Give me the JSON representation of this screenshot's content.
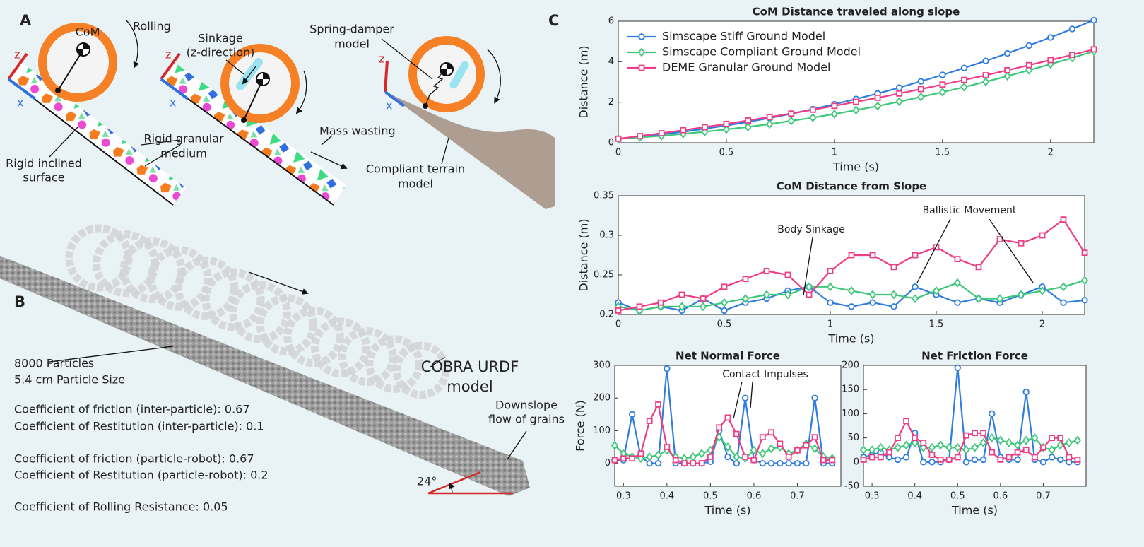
{
  "panel_labels": [
    "A",
    "B",
    "C"
  ],
  "diagram": {
    "com": "CoM",
    "rolling": "Rolling",
    "sinkage": [
      "Sinkage",
      "(z-direction)"
    ],
    "spring_damper": [
      "Spring-damper",
      "model"
    ],
    "granular": [
      "Rigid granular",
      "medium"
    ],
    "surface": [
      "Rigid inclined",
      "surface"
    ],
    "mass_wasting": "Mass wasting",
    "compliant": [
      "Compliant terrain",
      "model"
    ],
    "axis_z": "z",
    "axis_x": "x"
  },
  "simulation": {
    "model": [
      "COBRA URDF",
      "model"
    ],
    "particles": "8000 Particles",
    "size": "5.4 cm Particle Size",
    "params": [
      "Coefficient of friction (inter-particle): 0.67",
      "Coefficient of Restitution (inter-particle): 0.1",
      "Coefficient of friction (particle-robot): 0.67",
      "Coefficient of Restitution (particle-robot): 0.2",
      "Coefficient of Rolling Resistance: 0.05"
    ],
    "flow": [
      "Downslope",
      "flow of grains"
    ],
    "angle": "24°"
  },
  "chart_data": [
    {
      "type": "line",
      "title": "CoM Distance traveled along slope",
      "xlabel": "Time (s)",
      "ylabel": "Distance (m)",
      "x": [
        0,
        0.1,
        0.2,
        0.3,
        0.4,
        0.5,
        0.6,
        0.7,
        0.8,
        0.9,
        1,
        1.1,
        1.2,
        1.3,
        1.4,
        1.5,
        1.6,
        1.7,
        1.8,
        1.9,
        2,
        2.1,
        2.2
      ],
      "series": [
        {
          "name": "Simscape Stiff Ground Model",
          "color": "#2f7de1",
          "marker": "o",
          "values": [
            0.2,
            0.3,
            0.41,
            0.54,
            0.69,
            0.85,
            1.03,
            1.22,
            1.43,
            1.66,
            1.9,
            2.16,
            2.43,
            2.72,
            3.03,
            3.35,
            3.69,
            4.04,
            4.41,
            4.8,
            5.2,
            5.62,
            6.05
          ]
        },
        {
          "name": "Simscape Compliant Ground Model",
          "color": "#3cc878",
          "marker": "d",
          "values": [
            0.2,
            0.27,
            0.34,
            0.44,
            0.54,
            0.66,
            0.78,
            0.92,
            1.08,
            1.24,
            1.42,
            1.61,
            1.81,
            2.03,
            2.26,
            2.5,
            2.75,
            3.01,
            3.29,
            3.58,
            3.88,
            4.19,
            4.52
          ]
        },
        {
          "name": "DEME Granular Ground Model",
          "color": "#ee3d84",
          "marker": "s",
          "values": [
            0.2,
            0.33,
            0.47,
            0.62,
            0.77,
            0.93,
            1.1,
            1.27,
            1.44,
            1.63,
            1.82,
            2.02,
            2.22,
            2.43,
            2.65,
            2.87,
            3.1,
            3.33,
            3.58,
            3.83,
            4.08,
            4.34,
            4.61
          ]
        }
      ],
      "xlim": [
        0,
        2.2
      ],
      "ylim": [
        0,
        6
      ],
      "xticks": [
        0,
        0.5,
        1,
        1.5,
        2
      ],
      "yticks": [
        0,
        2,
        4,
        6
      ],
      "legend": "upper left"
    },
    {
      "type": "line",
      "title": "CoM Distance from Slope",
      "xlabel": "Time (s)",
      "ylabel": "Distance (m)",
      "x": [
        0,
        0.1,
        0.2,
        0.3,
        0.4,
        0.5,
        0.6,
        0.7,
        0.8,
        0.9,
        1,
        1.1,
        1.2,
        1.3,
        1.4,
        1.5,
        1.6,
        1.7,
        1.8,
        1.9,
        2,
        2.1,
        2.2
      ],
      "series": [
        {
          "color": "#2f7de1",
          "marker": "o",
          "values": [
            0.215,
            0.205,
            0.21,
            0.205,
            0.22,
            0.205,
            0.215,
            0.22,
            0.23,
            0.235,
            0.215,
            0.21,
            0.215,
            0.21,
            0.235,
            0.225,
            0.215,
            0.22,
            0.215,
            0.225,
            0.235,
            0.215,
            0.218
          ]
        },
        {
          "color": "#3cc878",
          "marker": "d",
          "values": [
            0.21,
            0.205,
            0.21,
            0.21,
            0.21,
            0.215,
            0.22,
            0.225,
            0.225,
            0.235,
            0.235,
            0.23,
            0.225,
            0.225,
            0.22,
            0.23,
            0.24,
            0.22,
            0.22,
            0.225,
            0.23,
            0.235,
            0.243
          ]
        },
        {
          "color": "#ee3d84",
          "marker": "s",
          "values": [
            0.205,
            0.21,
            0.215,
            0.225,
            0.22,
            0.235,
            0.245,
            0.255,
            0.25,
            0.225,
            0.255,
            0.275,
            0.275,
            0.26,
            0.275,
            0.285,
            0.27,
            0.26,
            0.295,
            0.29,
            0.3,
            0.32,
            0.278
          ]
        }
      ],
      "xlim": [
        0,
        2.2
      ],
      "ylim": [
        0.2,
        0.35
      ],
      "xticks": [
        0,
        0.5,
        1,
        1.5,
        2
      ],
      "yticks": [
        0.2,
        0.25,
        0.3,
        0.35
      ],
      "annotations": [
        "Body Sinkage",
        "Ballistic Movement"
      ]
    },
    {
      "type": "line",
      "title": "Net Normal Force",
      "xlabel": "Time (s)",
      "ylabel": "Force (N)",
      "x": [
        0.28,
        0.3,
        0.32,
        0.34,
        0.36,
        0.38,
        0.4,
        0.42,
        0.44,
        0.46,
        0.48,
        0.5,
        0.52,
        0.54,
        0.56,
        0.58,
        0.6,
        0.62,
        0.64,
        0.66,
        0.68,
        0.7,
        0.72,
        0.74,
        0.76,
        0.78
      ],
      "series": [
        {
          "color": "#2f7de1",
          "marker": "o",
          "values": [
            10,
            10,
            150,
            20,
            0,
            0,
            290,
            0,
            0,
            0,
            0,
            5,
            100,
            20,
            0,
            200,
            10,
            0,
            0,
            0,
            0,
            0,
            0,
            200,
            0,
            0
          ]
        },
        {
          "color": "#3cc878",
          "marker": "d",
          "values": [
            55,
            30,
            20,
            15,
            20,
            25,
            40,
            20,
            15,
            20,
            30,
            40,
            80,
            50,
            20,
            15,
            40,
            30,
            45,
            50,
            30,
            40,
            60,
            45,
            20,
            15
          ]
        },
        {
          "color": "#ee3d84",
          "marker": "s",
          "values": [
            10,
            15,
            15,
            30,
            130,
            180,
            50,
            10,
            0,
            0,
            0,
            20,
            110,
            140,
            90,
            20,
            10,
            80,
            95,
            60,
            20,
            40,
            55,
            80,
            10,
            10
          ]
        }
      ],
      "xlim": [
        0.28,
        0.8
      ],
      "ylim": [
        -70,
        300
      ],
      "xticks": [
        0.3,
        0.4,
        0.5,
        0.6,
        0.7
      ],
      "yticks": [
        0,
        100,
        200,
        300
      ],
      "annotations": [
        "Contact Impulses"
      ]
    },
    {
      "type": "line",
      "title": "Net Friction Force",
      "xlabel": "Time (s)",
      "x": [
        0.28,
        0.3,
        0.32,
        0.34,
        0.36,
        0.38,
        0.4,
        0.42,
        0.44,
        0.46,
        0.48,
        0.5,
        0.52,
        0.54,
        0.56,
        0.58,
        0.6,
        0.62,
        0.64,
        0.66,
        0.68,
        0.7,
        0.72,
        0.74,
        0.76,
        0.78
      ],
      "series": [
        {
          "color": "#2f7de1",
          "marker": "o",
          "values": [
            10,
            15,
            20,
            10,
            5,
            10,
            60,
            0,
            0,
            0,
            5,
            195,
            0,
            5,
            5,
            100,
            10,
            5,
            5,
            145,
            5,
            0,
            10,
            5,
            0,
            0
          ]
        },
        {
          "color": "#3cc878",
          "marker": "d",
          "values": [
            25,
            25,
            30,
            25,
            30,
            35,
            40,
            30,
            30,
            35,
            30,
            30,
            25,
            30,
            40,
            50,
            45,
            40,
            35,
            45,
            50,
            30,
            25,
            35,
            40,
            45
          ]
        },
        {
          "color": "#ee3d84",
          "marker": "s",
          "values": [
            5,
            10,
            10,
            20,
            50,
            85,
            50,
            40,
            15,
            5,
            5,
            10,
            55,
            60,
            60,
            20,
            5,
            10,
            20,
            25,
            10,
            30,
            50,
            50,
            10,
            5
          ]
        }
      ],
      "xlim": [
        0.28,
        0.8
      ],
      "ylim": [
        -50,
        200
      ],
      "xticks": [
        0.3,
        0.4,
        0.5,
        0.6,
        0.7
      ],
      "yticks": [
        -50,
        0,
        50,
        100,
        150,
        200
      ]
    }
  ]
}
